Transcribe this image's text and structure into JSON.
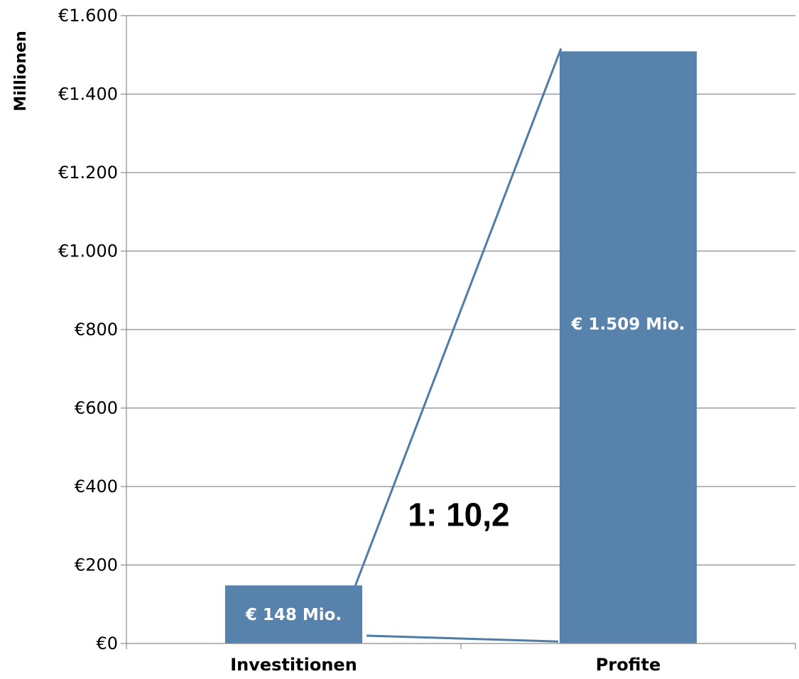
{
  "chart_data": {
    "type": "bar",
    "categories": [
      "Investitionen",
      "Profite"
    ],
    "values": [
      148,
      1509
    ],
    "data_labels": [
      "€ 148 Mio.",
      "€ 1.509 Mio."
    ],
    "ylabel": "Millionen",
    "ylim": [
      0,
      1600
    ],
    "yticks": [
      0,
      200,
      400,
      600,
      800,
      1000,
      1200,
      1400,
      1600
    ],
    "ytick_labels": [
      "€0",
      "€200",
      "€400",
      "€600",
      "€800",
      "€1.000",
      "€1.200",
      "€1.400",
      "€1.600"
    ],
    "annotation": "1: 10,2",
    "grid": true,
    "bar_color": "#5782AB",
    "line_color": "#4F7BA6"
  }
}
